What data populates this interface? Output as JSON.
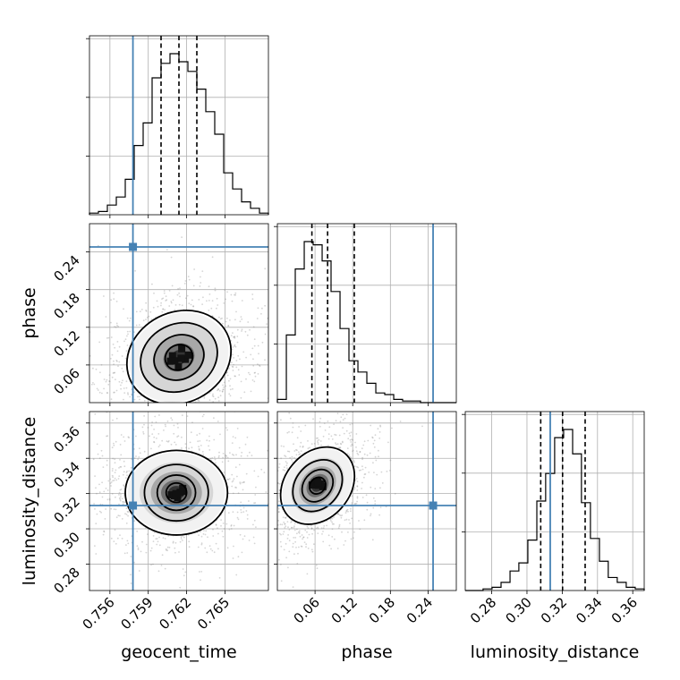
{
  "chart_data": {
    "type": "corner",
    "parameters": [
      "geocent_time",
      "phase",
      "luminosity_distance"
    ],
    "injected_truth": {
      "geocent_time": 0.7578,
      "phase": 0.248,
      "luminosity_distance": 0.3132
    },
    "truth_color": "#4682b4",
    "grid": true,
    "axes": {
      "geocent_time": {
        "range": [
          0.7544,
          0.7684
        ],
        "ticks": [
          0.756,
          0.759,
          0.762,
          0.765
        ],
        "tick_labels": [
          "0.756",
          "0.759",
          "0.762",
          "0.765"
        ]
      },
      "phase": {
        "range": [
          0.0,
          0.285
        ],
        "ticks": [
          0.06,
          0.12,
          0.18,
          0.24
        ],
        "tick_labels": [
          "0.06",
          "0.12",
          "0.18",
          "0.24"
        ]
      },
      "luminosity_distance": {
        "range": [
          0.265,
          0.3665
        ],
        "ticks": [
          0.28,
          0.3,
          0.32,
          0.34,
          0.36
        ],
        "tick_labels": [
          "0.28",
          "0.30",
          "0.32",
          "0.34",
          "0.36"
        ]
      }
    },
    "marginals": {
      "geocent_time": {
        "quantiles": [
          0.76,
          0.7614,
          0.7628
        ],
        "bin_edges": [
          0.7544,
          0.7551,
          0.7558,
          0.7565,
          0.7572,
          0.7579,
          0.7586,
          0.7593,
          0.76,
          0.7607,
          0.7614,
          0.7621,
          0.7628,
          0.7635,
          0.7642,
          0.7649,
          0.7656,
          0.7663,
          0.767,
          0.7677,
          0.7684
        ],
        "counts": [
          1,
          2,
          6,
          11,
          22,
          43,
          57,
          85,
          94,
          100,
          95,
          89,
          78,
          64,
          50,
          26,
          16,
          8,
          4,
          1
        ]
      },
      "phase": {
        "quantiles": [
          0.055,
          0.08,
          0.1225
        ],
        "bin_edges": [
          0.0,
          0.0143,
          0.0285,
          0.0428,
          0.057,
          0.0713,
          0.0855,
          0.0998,
          0.114,
          0.1283,
          0.1425,
          0.1568,
          0.171,
          0.1853,
          0.1995,
          0.2138,
          0.228,
          0.2423,
          0.2565,
          0.2708,
          0.285
        ],
        "counts": [
          2,
          42,
          83,
          100,
          98,
          88,
          69,
          46,
          26,
          19,
          12,
          6,
          5,
          2,
          1,
          1,
          0,
          0,
          0,
          0
        ]
      },
      "luminosity_distance": {
        "quantiles": [
          0.3078,
          0.3202,
          0.333
        ],
        "bin_edges": [
          0.265,
          0.2701,
          0.2751,
          0.2802,
          0.2853,
          0.2904,
          0.2954,
          0.3005,
          0.3056,
          0.3106,
          0.3157,
          0.3208,
          0.3259,
          0.3309,
          0.336,
          0.3411,
          0.3461,
          0.3512,
          0.3563,
          0.3614,
          0.3665
        ],
        "counts": [
          0,
          0,
          1,
          2,
          5,
          12,
          17,
          31,
          55,
          72,
          94,
          99,
          84,
          54,
          32,
          18,
          8,
          5,
          2,
          1
        ]
      }
    },
    "joint_2d": [
      {
        "x": "geocent_time",
        "y": "phase",
        "mode": [
          0.7614,
          0.072
        ],
        "contour_widths": [
          [
            0.0011,
            0.02
          ],
          [
            0.002,
            0.035
          ],
          [
            0.0031,
            0.053
          ],
          [
            0.0042,
            0.072
          ]
        ],
        "angle_deg": -27
      },
      {
        "x": "geocent_time",
        "y": "luminosity_distance",
        "mode": [
          0.7612,
          0.3205
        ],
        "contour_widths": [
          [
            0.0008,
            0.0055
          ],
          [
            0.0015,
            0.01
          ],
          [
            0.0025,
            0.016
          ],
          [
            0.004,
            0.024
          ]
        ],
        "angle_deg": 0
      },
      {
        "x": "phase",
        "y": "luminosity_distance",
        "mode": [
          0.064,
          0.3245
        ],
        "contour_widths": [
          [
            0.012,
            0.005
          ],
          [
            0.022,
            0.01
          ],
          [
            0.035,
            0.016
          ],
          [
            0.052,
            0.024
          ]
        ],
        "angle_deg": 40
      }
    ]
  }
}
